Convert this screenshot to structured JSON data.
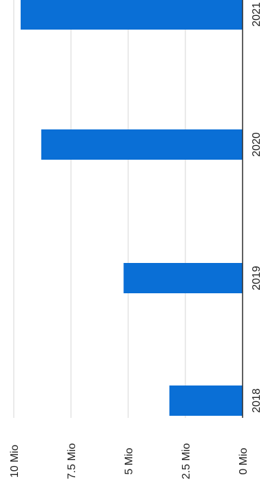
{
  "chart_data": {
    "type": "bar",
    "orientation": "rotated-90",
    "categories": [
      "2018",
      "2019",
      "2020",
      "2021"
    ],
    "values": [
      3.2,
      5.2,
      8.8,
      9.7
    ],
    "value_unit": "Mio",
    "value_ticks": [
      "0 Mio",
      "2.5 Mio",
      "5 Mio",
      "7.5 Mio",
      "10 Mio"
    ],
    "tick_values": [
      0,
      2.5,
      5,
      7.5,
      10
    ],
    "ylim": [
      0,
      10
    ],
    "grid": true,
    "bar_color": "#0a6fd6",
    "grid_color": "#d4d4d4",
    "axis_color": "#2a2a2a",
    "title": "",
    "xlabel": "",
    "ylabel": ""
  }
}
